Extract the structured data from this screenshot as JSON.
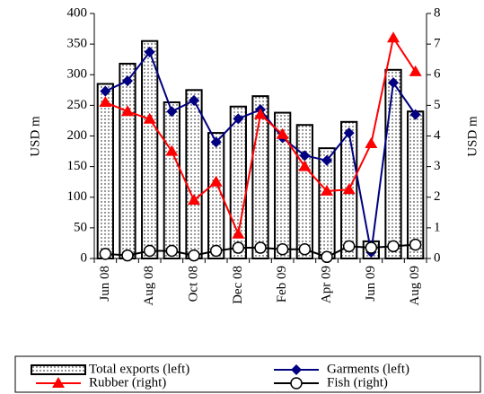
{
  "chart_data": {
    "type": "bar_line",
    "categories": [
      "Jun 08",
      null,
      "Aug 08",
      null,
      "Oct 08",
      null,
      "Dec 08",
      null,
      "Feb 09",
      null,
      "Apr 09",
      null,
      "Jun 09",
      null,
      "Aug 09"
    ],
    "ylabel": "USD m",
    "y2label": "USD m",
    "ylim": [
      0,
      400
    ],
    "yticks": [
      0,
      50,
      100,
      150,
      200,
      250,
      300,
      350,
      400
    ],
    "y2lim": [
      0,
      8
    ],
    "y2ticks": [
      0,
      1,
      2,
      3,
      4,
      5,
      6,
      7,
      8
    ],
    "series": [
      {
        "name": "Total exports (left)",
        "kind": "bar",
        "color": "#000000",
        "values": [
          285,
          318,
          355,
          255,
          275,
          205,
          248,
          265,
          238,
          218,
          180,
          223,
          28,
          308,
          240
        ]
      },
      {
        "name": "Garments (left)",
        "kind": "line",
        "marker": "diamond",
        "color": "#000080",
        "values": [
          273,
          290,
          337,
          240,
          258,
          190,
          228,
          243,
          197,
          168,
          160,
          205,
          10,
          287,
          235
        ]
      },
      {
        "name": "Rubber (right)",
        "kind": "line",
        "marker": "triangle",
        "color": "#ff0000",
        "axis": "y2",
        "values": [
          5.1,
          4.8,
          4.55,
          3.5,
          1.9,
          2.5,
          0.8,
          4.7,
          4.05,
          3.0,
          2.2,
          2.25,
          3.75,
          7.2,
          6.1
        ]
      },
      {
        "name": "Fish (right)",
        "kind": "line",
        "marker": "circle",
        "color": "#000000",
        "axis": "y2",
        "values": [
          0.15,
          0.1,
          0.25,
          0.25,
          0.1,
          0.25,
          0.35,
          0.35,
          0.3,
          0.3,
          0.05,
          0.4,
          0.35,
          0.4,
          0.45
        ]
      }
    ]
  }
}
